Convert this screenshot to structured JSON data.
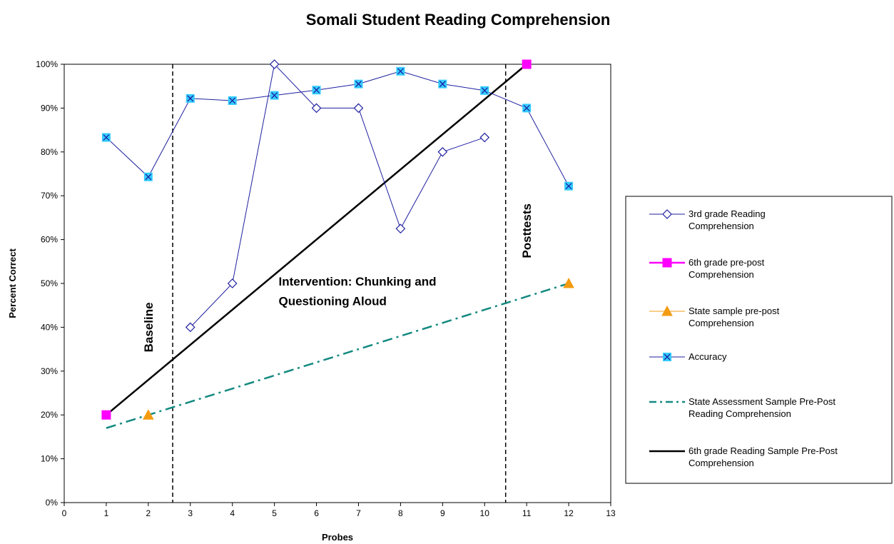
{
  "chart_data": {
    "type": "line",
    "title": "Somali Student Reading Comprehension",
    "xlabel": "Probes",
    "ylabel": "Percent Correct",
    "xlim": [
      0,
      13
    ],
    "ylim": [
      0,
      100
    ],
    "x_ticks": [
      "0",
      "1",
      "2",
      "3",
      "4",
      "5",
      "6",
      "7",
      "8",
      "9",
      "10",
      "11",
      "12",
      "13"
    ],
    "y_ticks": [
      "0%",
      "10%",
      "20%",
      "30%",
      "40%",
      "50%",
      "60%",
      "70%",
      "80%",
      "90%",
      "100%"
    ],
    "grid": false,
    "legend_position": "right",
    "phase_lines": [
      2.58,
      10.5
    ],
    "annotations": [
      {
        "text": "Baseline",
        "x": 2.0,
        "y": 40,
        "rotated": true
      },
      {
        "text": "Intervention: Chunking and",
        "x": 5.1,
        "y": 49.5
      },
      {
        "text": "Questioning Aloud",
        "x": 5.1,
        "y": 45
      },
      {
        "text": "Posttests",
        "x": 11.0,
        "y": 62,
        "rotated": true
      }
    ],
    "series": [
      {
        "name": "3rd grade Reading Comprehension",
        "legend_lines": [
          "3rd grade Reading",
          "Comprehension"
        ],
        "color": "#1f1fa0",
        "marker": "diamond",
        "style": "solid",
        "points": [
          [
            3,
            40
          ],
          [
            4,
            50
          ],
          [
            5,
            100
          ],
          [
            6,
            90
          ],
          [
            7,
            90
          ],
          [
            8,
            62.5
          ],
          [
            9,
            80
          ],
          [
            10,
            83.3
          ]
        ]
      },
      {
        "name": "6th grade pre-post Comprehension",
        "legend_lines": [
          "6th grade pre-post",
          "Comprehension"
        ],
        "color": "#ff00ff",
        "marker": "square",
        "style": "solid",
        "points": [
          [
            1,
            20
          ],
          [
            11,
            100
          ]
        ]
      },
      {
        "name": "State sample pre-post Comprehension",
        "legend_lines": [
          "State sample pre-post",
          "Comprehension"
        ],
        "color": "#f39c12",
        "marker": "triangle",
        "style": "solid",
        "points": [
          [
            2,
            20
          ],
          [
            12,
            50
          ]
        ]
      },
      {
        "name": "Accuracy",
        "legend_lines": [
          "Accuracy"
        ],
        "color": "#1f1fa0",
        "marker": "xsquare",
        "marker_fill": "#33ccff",
        "style": "solid",
        "points": [
          [
            1,
            83.3
          ],
          [
            2,
            74.3
          ],
          [
            3,
            92.2
          ],
          [
            4,
            91.7
          ],
          [
            5,
            92.9
          ],
          [
            6,
            94.1
          ],
          [
            7,
            95.5
          ],
          [
            8,
            98.4
          ],
          [
            9,
            95.5
          ],
          [
            10,
            94
          ],
          [
            11,
            90
          ],
          [
            12,
            72.2
          ]
        ]
      },
      {
        "name": "State Assessment Sample Pre-Post Reading Comprehension",
        "legend_lines": [
          "State Assessment Sample Pre-Post",
          "Reading Comprehension"
        ],
        "color": "#138a80",
        "marker": "none",
        "style": "dashdot",
        "points": [
          [
            1,
            17
          ],
          [
            12,
            50
          ]
        ]
      },
      {
        "name": "6th grade Reading Sample Pre-Post Comprehension",
        "legend_lines": [
          "6th grade Reading Sample Pre-Post",
          "Comprehension"
        ],
        "color": "#000000",
        "marker": "none",
        "style": "solid",
        "points": [
          [
            1,
            20
          ],
          [
            11,
            100
          ]
        ]
      }
    ]
  }
}
